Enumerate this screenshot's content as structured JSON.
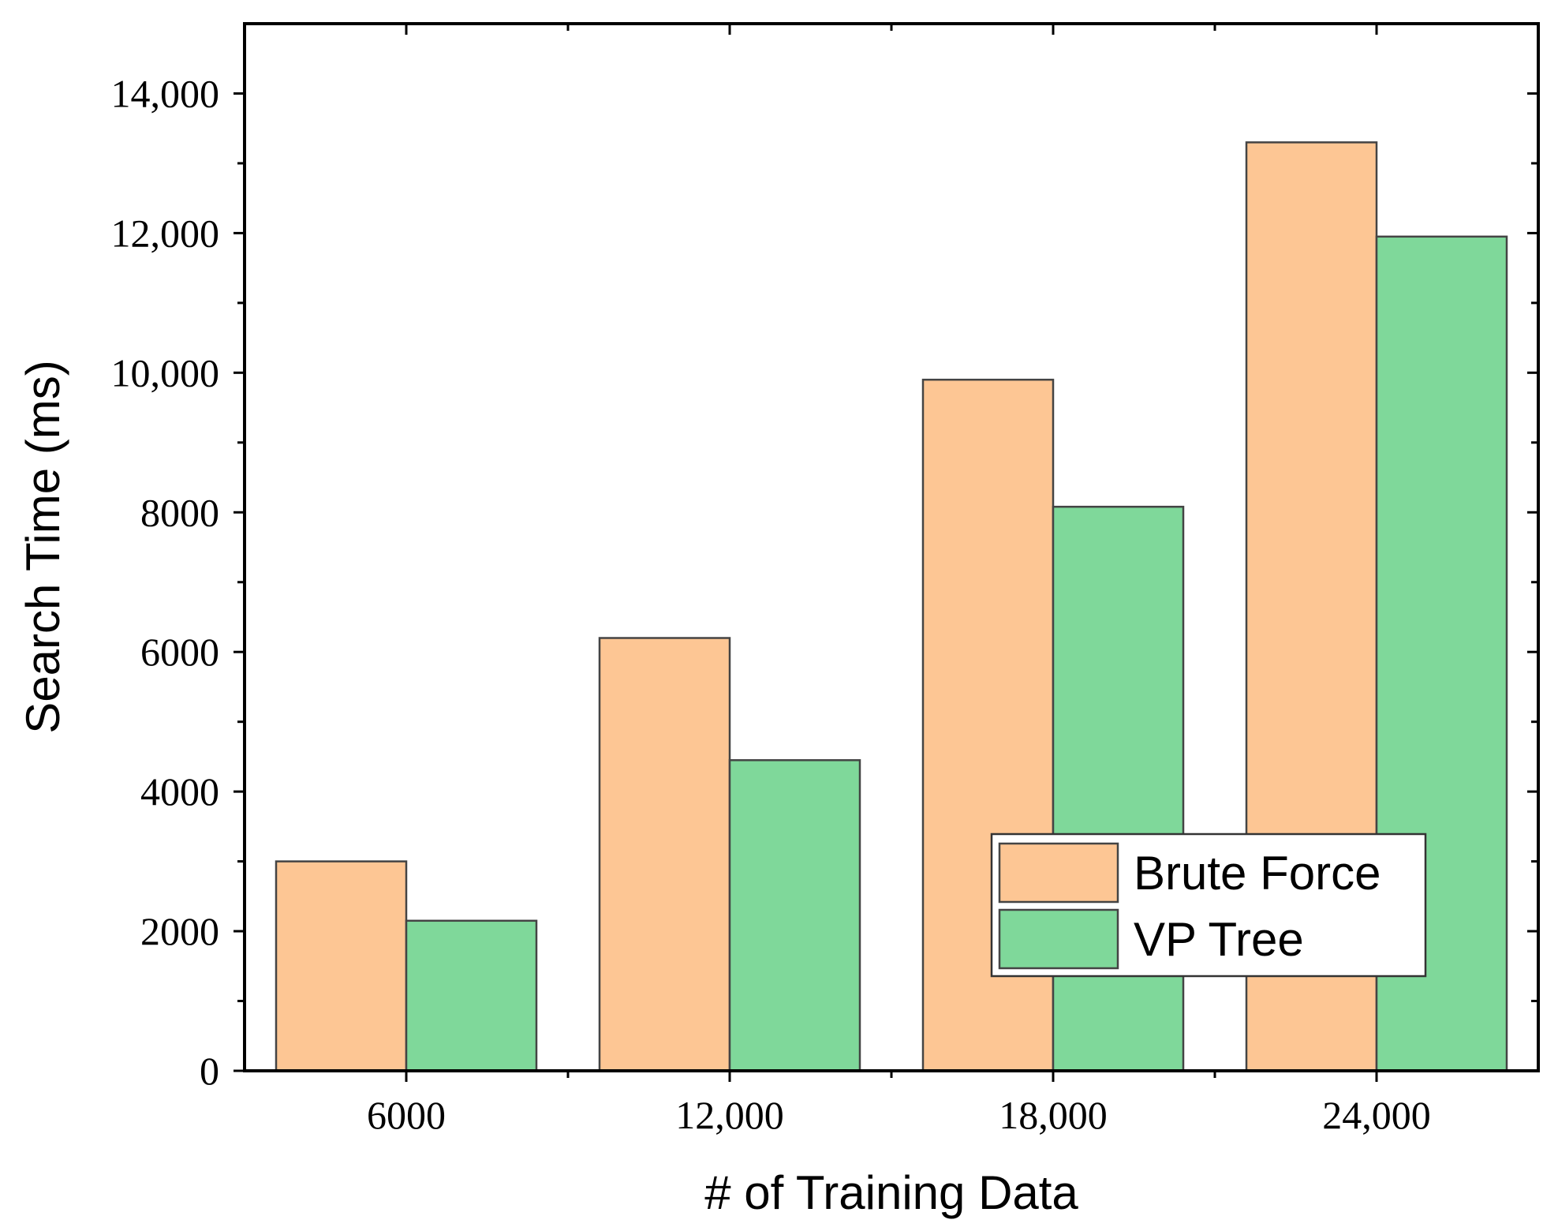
{
  "colors": {
    "brute_force": "#FDC694",
    "vp_tree": "#7FD89A",
    "axis": "#000000",
    "bar_stroke": "#444444"
  },
  "chart_data": {
    "type": "bar",
    "title": "",
    "xlabel": "# of Training Data",
    "ylabel": "Search Time (ms)",
    "categories": [
      "6000",
      "12,000",
      "18,000",
      "24,000"
    ],
    "series": [
      {
        "name": "Brute Force",
        "values": [
          3000,
          6200,
          9900,
          13300
        ]
      },
      {
        "name": "VP Tree",
        "values": [
          2150,
          4450,
          8080,
          11950
        ]
      }
    ],
    "ylim": [
      0,
      15000
    ],
    "yticks": [
      0,
      2000,
      4000,
      6000,
      8000,
      10000,
      12000,
      14000
    ],
    "ytick_labels": [
      "0",
      "2000",
      "4000",
      "6000",
      "8000",
      "10,000",
      "12,000",
      "14,000"
    ],
    "grid": false,
    "legend": {
      "position": "lower-right",
      "entries": [
        "Brute Force",
        "VP Tree"
      ]
    }
  }
}
